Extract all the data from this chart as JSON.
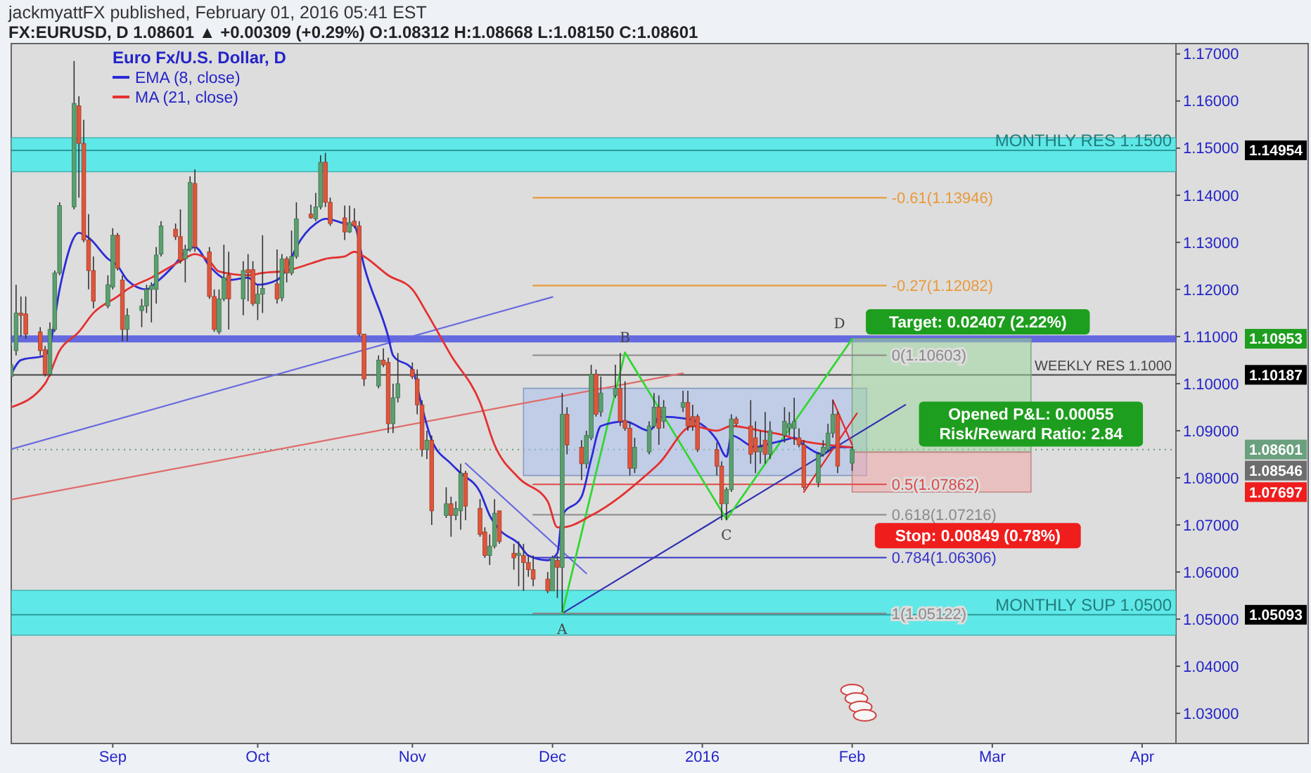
{
  "chart_data": {
    "type": "candlestick",
    "title": "jackmyattFX published, February 01, 2016 05:41 EST",
    "subtitle": "FX:EURUSD, D 1.08601 ▲ +0.00309 (+0.29%) O:1.08312 H:1.08668 L:1.08150 C:1.08601",
    "legend_title": "Euro Fx/U.S. Dollar, D",
    "legend": "top left",
    "xlim": [
      "2015-08-11",
      "2016-04-08"
    ],
    "xticks": [
      {
        "value": "2015-09-01",
        "label": "Sep"
      },
      {
        "value": "2015-10-01",
        "label": "Oct"
      },
      {
        "value": "2015-11-02",
        "label": "Nov"
      },
      {
        "value": "2015-12-01",
        "label": "Dec"
      },
      {
        "value": "2016-01-01",
        "label": "2016"
      },
      {
        "value": "2016-02-01",
        "label": "Feb"
      },
      {
        "value": "2016-03-01",
        "label": "Mar"
      },
      {
        "value": "2016-04-01",
        "label": "Apr"
      }
    ],
    "ylim": [
      1.0236,
      1.1722
    ],
    "yticks": [
      {
        "value": 1.03,
        "label": "1.03000"
      },
      {
        "value": 1.04,
        "label": "1.04000"
      },
      {
        "value": 1.05,
        "label": "1.05000"
      },
      {
        "value": 1.06,
        "label": "1.06000"
      },
      {
        "value": 1.07,
        "label": "1.07000"
      },
      {
        "value": 1.08,
        "label": "1.08000"
      },
      {
        "value": 1.09,
        "label": "1.09000"
      },
      {
        "value": 1.1,
        "label": "1.10000"
      },
      {
        "value": 1.11,
        "label": "1.11000"
      },
      {
        "value": 1.12,
        "label": "1.12000"
      },
      {
        "value": 1.13,
        "label": "1.13000"
      },
      {
        "value": 1.14,
        "label": "1.14000"
      },
      {
        "value": 1.15,
        "label": "1.15000"
      },
      {
        "value": 1.16,
        "label": "1.16000"
      },
      {
        "value": 1.17,
        "label": "1.17000"
      }
    ],
    "bands": [
      {
        "axis": "y",
        "from": 1.145,
        "to": 1.1522,
        "color": "#5fe8e8"
      },
      {
        "axis": "y",
        "from": 1.0466,
        "to": 1.0561,
        "color": "#5fe8e8"
      }
    ],
    "ref_lines": [
      {
        "axis": "y",
        "value": 1.14954,
        "label": "MONTHLY RES 1.1500",
        "color": "#2a9a9a"
      },
      {
        "axis": "y",
        "value": 1.05093,
        "label": "MONTHLY SUP 1.0500",
        "color": "#2a9a9a"
      },
      {
        "axis": "y",
        "value": 1.1095,
        "color": "#4f55e0"
      },
      {
        "axis": "y",
        "value": 1.10187,
        "label": "WEEKLY RES 1.1000",
        "color": "#444444"
      },
      {
        "axis": "y",
        "value": 1.08601,
        "line_style": "dotted",
        "color": "#5f9f78"
      }
    ],
    "series": [
      {
        "type": "line",
        "x": [
          "2015-11-25",
          "2016-02-04"
        ],
        "values": [
          null,
          null
        ],
        "lower": [
          1.0805,
          1.0805
        ],
        "upper": [
          1.099,
          1.099
        ],
        "color": "#a9c0ec"
      },
      {
        "type": "line",
        "x": [
          "2016-02-01",
          "2016-03-09"
        ],
        "values": [
          null,
          null
        ],
        "lower": [
          1.08546,
          1.08546
        ],
        "upper": [
          1.10953,
          1.10953
        ],
        "color": "#9fd59f"
      },
      {
        "type": "line",
        "x": [
          "2016-02-01",
          "2016-03-09"
        ],
        "values": [
          null,
          null
        ],
        "lower": [
          1.07697,
          1.07697
        ],
        "upper": [
          1.08546,
          1.08546
        ],
        "color": "#f2a8a8"
      },
      {
        "type": "line",
        "x": [
          "2015-08-11",
          "2015-12-01"
        ],
        "values": [
          1.0861,
          1.1184
        ],
        "color": "#6a6ae0"
      },
      {
        "type": "line",
        "x": [
          "2015-08-11",
          "2015-12-28"
        ],
        "values": [
          1.0754,
          1.1022
        ],
        "color": "#e06a6a"
      },
      {
        "type": "line",
        "x": [
          "2015-11-13",
          "2015-12-08"
        ],
        "values": [
          1.0831,
          1.0597
        ],
        "color": "#6a6ae0"
      },
      {
        "type": "line",
        "name": "-0.61(1.13946)",
        "x": [
          "2015-11-27",
          "2016-02-08"
        ],
        "values": [
          1.13946,
          1.13946
        ],
        "color": "#e89a3a"
      },
      {
        "type": "line",
        "name": "-0.27(1.12082)",
        "x": [
          "2015-11-27",
          "2016-02-08"
        ],
        "values": [
          1.12082,
          1.12082
        ],
        "color": "#e89a3a"
      },
      {
        "type": "line",
        "name": "0(1.10603)",
        "x": [
          "2015-11-27",
          "2016-02-08"
        ],
        "values": [
          1.10603,
          1.10603
        ],
        "color": "#8a8a8a"
      },
      {
        "type": "line",
        "name": "0.5(1.07862)",
        "x": [
          "2015-11-27",
          "2016-02-08"
        ],
        "values": [
          1.07862,
          1.07862
        ],
        "color": "#e04848"
      },
      {
        "type": "line",
        "name": "0.618(1.07216)",
        "x": [
          "2015-11-27",
          "2016-02-08"
        ],
        "values": [
          1.07216,
          1.07216
        ],
        "color": "#8a8a8a"
      },
      {
        "type": "line",
        "name": "0.784(1.06306)",
        "x": [
          "2015-11-27",
          "2016-02-08"
        ],
        "values": [
          1.06306,
          1.06306
        ],
        "color": "#3434c8"
      },
      {
        "type": "line",
        "name": "1(1.05122)",
        "x": [
          "2015-11-27",
          "2016-02-08"
        ],
        "values": [
          1.05122,
          1.05122
        ],
        "color": "#8a8a8a"
      },
      {
        "type": "line",
        "x": [
          "2015-12-03",
          "2016-02-12"
        ],
        "values": [
          1.05122,
          1.0955
        ],
        "color": "#3030b0"
      },
      {
        "type": "line",
        "x": [
          "2015-12-03",
          "2015-12-16",
          "2016-01-06",
          "2016-02-01"
        ],
        "values": [
          1.05122,
          1.1066,
          1.0712,
          1.1095
        ],
        "color": "#33d633"
      },
      {
        "type": "line",
        "x": [
          "2016-01-22",
          "2016-02-02"
        ],
        "values": [
          1.077,
          1.0937
        ],
        "color": "#e02828"
      },
      {
        "type": "line",
        "x": [
          "2016-01-28",
          "2016-02-01"
        ],
        "values": [
          1.0965,
          1.087
        ],
        "color": "#e02828"
      },
      {
        "x": [
          "2015-08-11",
          "2015-08-12",
          "2015-08-13",
          "2015-08-14",
          "2015-08-17",
          "2015-08-18",
          "2015-08-19",
          "2015-08-20",
          "2015-08-21",
          "2015-08-24",
          "2015-08-25",
          "2015-08-26",
          "2015-08-27",
          "2015-08-28",
          "2015-08-31",
          "2015-09-01",
          "2015-09-02",
          "2015-09-03",
          "2015-09-04",
          "2015-09-07",
          "2015-09-08",
          "2015-09-09",
          "2015-09-10",
          "2015-09-11",
          "2015-09-14",
          "2015-09-15",
          "2015-09-16",
          "2015-09-17",
          "2015-09-18",
          "2015-09-21",
          "2015-09-22",
          "2015-09-23",
          "2015-09-24",
          "2015-09-25",
          "2015-09-28",
          "2015-09-29",
          "2015-09-30",
          "2015-10-01",
          "2015-10-02",
          "2015-10-05",
          "2015-10-06",
          "2015-10-07",
          "2015-10-08",
          "2015-10-09",
          "2015-10-12",
          "2015-10-13",
          "2015-10-14",
          "2015-10-15",
          "2015-10-16",
          "2015-10-19",
          "2015-10-20",
          "2015-10-21",
          "2015-10-22",
          "2015-10-23",
          "2015-10-26",
          "2015-10-27",
          "2015-10-28",
          "2015-10-29",
          "2015-10-30",
          "2015-11-02",
          "2015-11-03",
          "2015-11-04",
          "2015-11-05",
          "2015-11-06",
          "2015-11-09",
          "2015-11-10",
          "2015-11-11",
          "2015-11-12",
          "2015-11-13",
          "2015-11-16",
          "2015-11-17",
          "2015-11-18",
          "2015-11-19",
          "2015-11-20",
          "2015-11-23",
          "2015-11-24",
          "2015-11-25",
          "2015-11-26",
          "2015-11-27",
          "2015-11-30",
          "2015-12-01",
          "2015-12-02",
          "2015-12-03",
          "2015-12-04",
          "2015-12-07",
          "2015-12-08",
          "2015-12-09",
          "2015-12-10",
          "2015-12-11",
          "2015-12-14",
          "2015-12-15",
          "2015-12-16",
          "2015-12-17",
          "2015-12-18",
          "2015-12-21",
          "2015-12-22",
          "2015-12-23",
          "2015-12-24",
          "2015-12-28",
          "2015-12-29",
          "2015-12-30",
          "2015-12-31",
          "2016-01-04",
          "2016-01-05",
          "2016-01-06",
          "2016-01-07",
          "2016-01-08",
          "2016-01-11",
          "2016-01-12",
          "2016-01-13",
          "2016-01-14",
          "2016-01-15",
          "2016-01-18",
          "2016-01-19",
          "2016-01-20",
          "2016-01-21",
          "2016-01-22",
          "2016-01-25",
          "2016-01-26",
          "2016-01-27",
          "2016-01-28",
          "2016-01-29",
          "2016-02-01"
        ],
        "colors": [
          "#5aa06f",
          "#5aa06f",
          "#e0553a",
          "#e0553a",
          "#e0553a",
          "#e0553a",
          "#5aa06f",
          "#5aa06f",
          "#5aa06f",
          "#5aa06f",
          "#e0553a",
          "#e0553a",
          "#e0553a",
          "#e0553a",
          "#5aa06f",
          "#5aa06f",
          "#e0553a",
          "#e0553a",
          "#5aa06f",
          "#5aa06f",
          "#5aa06f",
          "#5aa06f",
          "#5aa06f",
          "#5aa06f",
          "#e0553a",
          "#e0553a",
          "#5aa06f",
          "#5aa06f",
          "#e0553a",
          "#e0553a",
          "#e0553a",
          "#5aa06f",
          "#5aa06f",
          "#e0553a",
          "#5aa06f",
          "#e0553a",
          "#e0553a",
          "#5aa06f",
          "#5aa06f",
          "#e0553a",
          "#5aa06f",
          "#e0553a",
          "#5aa06f",
          "#5aa06f",
          "#e0553a",
          "#5aa06f",
          "#5aa06f",
          "#e0553a",
          "#e0553a",
          "#e0553a",
          "#5aa06f",
          "#e0553a",
          "#e0553a",
          "#e0553a",
          "#5aa06f",
          "#e0553a",
          "#e0553a",
          "#5aa06f",
          "#5aa06f",
          "#e0553a",
          "#e0553a",
          "#e0553a",
          "#5aa06f",
          "#e0553a",
          "#5aa06f",
          "#e0553a",
          "#5aa06f",
          "#5aa06f",
          "#e0553a",
          "#e0553a",
          "#e0553a",
          "#5aa06f",
          "#5aa06f",
          "#e0553a",
          "#e0553a",
          "#5aa06f",
          "#e0553a",
          "#e0553a",
          "#e0553a",
          "#e0553a",
          "#5aa06f",
          "#e0553a",
          "#5aa06f",
          "#e0553a",
          "#e0553a",
          "#5aa06f",
          "#5aa06f",
          "#e0553a",
          "#5aa06f",
          "#5aa06f",
          "#e0553a",
          "#e0553a",
          "#e0553a",
          "#5aa06f",
          "#5aa06f",
          "#5aa06f",
          "#e0553a",
          "#5aa06f",
          "#5aa06f",
          "#e0553a",
          "#e0553a",
          "#e0553a",
          "#e0553a",
          "#e0553a",
          "#5aa06f",
          "#5aa06f",
          "#e0553a",
          "#e0553a",
          "#e0553a",
          "#5aa06f",
          "#e0553a",
          "#5aa06f",
          "#5aa06f",
          "#5aa06f",
          "#5aa06f",
          "#e0553a",
          "#e0553a",
          "#5aa06f",
          "#5aa06f",
          "#5aa06f",
          "#5aa06f",
          "#e0553a",
          "#5aa06f"
        ],
        "ohlc": [
          [
            1.1015,
            1.108,
            1.096,
            1.104
          ],
          [
            1.107,
            1.121,
            1.106,
            1.115
          ],
          [
            1.115,
            1.1185,
            1.11,
            1.1145
          ],
          [
            1.1148,
            1.1185,
            1.1095,
            1.1105
          ],
          [
            1.111,
            1.112,
            1.106,
            1.107
          ],
          [
            1.1072,
            1.108,
            1.1015,
            1.102
          ],
          [
            1.102,
            1.113,
            1.1015,
            1.1115
          ],
          [
            1.1115,
            1.124,
            1.111,
            1.1235
          ],
          [
            1.1235,
            1.1385,
            1.123,
            1.1378
          ],
          [
            1.1375,
            1.1685,
            1.137,
            1.1595
          ],
          [
            1.159,
            1.161,
            1.1395,
            1.151
          ],
          [
            1.151,
            1.156,
            1.13,
            1.1305
          ],
          [
            1.1305,
            1.136,
            1.12,
            1.124
          ],
          [
            1.124,
            1.127,
            1.116,
            1.1175
          ],
          [
            1.1165,
            1.123,
            1.116,
            1.121
          ],
          [
            1.1205,
            1.133,
            1.12,
            1.1315
          ],
          [
            1.1315,
            1.132,
            1.124,
            1.1245
          ],
          [
            1.122,
            1.123,
            1.109,
            1.1115
          ],
          [
            1.1115,
            1.116,
            1.109,
            1.1145
          ],
          [
            1.1155,
            1.118,
            1.112,
            1.1165
          ],
          [
            1.1165,
            1.121,
            1.115,
            1.12
          ],
          [
            1.12,
            1.1215,
            1.113,
            1.1208
          ],
          [
            1.12,
            1.129,
            1.117,
            1.1273
          ],
          [
            1.1275,
            1.1345,
            1.127,
            1.1335
          ],
          [
            1.1328,
            1.134,
            1.1305,
            1.1312
          ],
          [
            1.1312,
            1.137,
            1.1255,
            1.1262
          ],
          [
            1.1265,
            1.1295,
            1.1215,
            1.1285
          ],
          [
            1.1285,
            1.144,
            1.128,
            1.1427
          ],
          [
            1.1425,
            1.1455,
            1.128,
            1.129
          ],
          [
            1.128,
            1.129,
            1.118,
            1.1185
          ],
          [
            1.1185,
            1.12,
            1.111,
            1.1115
          ],
          [
            1.111,
            1.12,
            1.1105,
            1.118
          ],
          [
            1.118,
            1.1295,
            1.1175,
            1.1225
          ],
          [
            1.123,
            1.128,
            1.1115,
            1.118
          ],
          [
            1.118,
            1.126,
            1.1145,
            1.124
          ],
          [
            1.1242,
            1.1275,
            1.1175,
            1.1235
          ],
          [
            1.1242,
            1.126,
            1.1165,
            1.117
          ],
          [
            1.117,
            1.121,
            1.1135,
            1.119
          ],
          [
            1.119,
            1.1315,
            1.115,
            1.1202
          ],
          [
            1.1212,
            1.1285,
            1.117,
            1.118
          ],
          [
            1.1182,
            1.1275,
            1.1175,
            1.1265
          ],
          [
            1.1265,
            1.127,
            1.1215,
            1.1235
          ],
          [
            1.1235,
            1.1325,
            1.123,
            1.127
          ],
          [
            1.127,
            1.1385,
            1.1265,
            1.135
          ],
          [
            1.136,
            1.138,
            1.135,
            1.1352
          ],
          [
            1.135,
            1.1405,
            1.1345,
            1.1375
          ],
          [
            1.1375,
            1.1485,
            1.137,
            1.147
          ],
          [
            1.147,
            1.149,
            1.1375,
            1.1385
          ],
          [
            1.1385,
            1.1395,
            1.1335,
            1.134
          ],
          [
            1.1352,
            1.1378,
            1.1305,
            1.1322
          ],
          [
            1.1322,
            1.1378,
            1.132,
            1.1342
          ],
          [
            1.1345,
            1.1372,
            1.133,
            1.1335
          ],
          [
            1.1335,
            1.1345,
            1.11,
            1.1105
          ],
          [
            1.1105,
            1.1105,
            1.0995,
            1.101
          ],
          [
            1.0995,
            1.106,
            1.099,
            1.105
          ],
          [
            1.105,
            1.1075,
            1.1035,
            1.104
          ],
          [
            1.1045,
            1.1055,
            1.0895,
            1.0915
          ],
          [
            1.0915,
            1.1,
            1.0895,
            1.097
          ],
          [
            1.097,
            1.1065,
            1.096,
            1.1
          ],
          [
            1.103,
            1.1045,
            1.101,
            1.1015
          ],
          [
            1.101,
            1.103,
            1.0935,
            1.0955
          ],
          [
            1.0955,
            1.0965,
            1.0845,
            1.086
          ],
          [
            1.086,
            1.09,
            1.084,
            1.088
          ],
          [
            1.088,
            1.089,
            1.07,
            1.073
          ],
          [
            1.072,
            1.078,
            1.0715,
            1.0745
          ],
          [
            1.0745,
            1.076,
            1.0675,
            1.072
          ],
          [
            1.072,
            1.075,
            1.071,
            1.0735
          ],
          [
            1.073,
            1.083,
            1.069,
            1.081
          ],
          [
            1.081,
            1.0815,
            1.071,
            1.074
          ],
          [
            1.0735,
            1.0755,
            1.0675,
            1.068
          ],
          [
            1.0685,
            1.0695,
            1.063,
            1.0635
          ],
          [
            1.0635,
            1.068,
            1.0615,
            1.0655
          ],
          [
            1.0655,
            1.0755,
            1.065,
            1.0725
          ],
          [
            1.073,
            1.073,
            1.066,
            1.0665
          ],
          [
            1.064,
            1.066,
            1.0605,
            1.063
          ],
          [
            1.0635,
            1.0665,
            1.057,
            1.064
          ],
          [
            1.0635,
            1.066,
            1.056,
            1.062
          ],
          [
            1.062,
            1.0635,
            1.059,
            1.0605
          ],
          [
            1.0605,
            1.0635,
            1.057,
            1.0585
          ],
          [
            1.0585,
            1.06,
            1.0555,
            1.056
          ],
          [
            1.056,
            1.0635,
            1.056,
            1.063
          ],
          [
            1.0625,
            1.0635,
            1.0545,
            1.061
          ],
          [
            1.061,
            1.098,
            1.0515,
            1.0935
          ],
          [
            1.0935,
            1.095,
            1.085,
            1.087
          ],
          [
            1.0865,
            1.088,
            1.0795,
            1.083
          ],
          [
            1.083,
            1.09,
            1.082,
            1.089
          ],
          [
            1.0885,
            1.104,
            1.088,
            1.102
          ],
          [
            1.102,
            1.103,
            1.093,
            1.0935
          ],
          [
            1.094,
            1.1015,
            1.093,
            1.098
          ],
          [
            1.0975,
            1.104,
            1.097,
            1.099
          ],
          [
            1.099,
            1.1065,
            1.091,
            1.092
          ],
          [
            1.0922,
            1.1005,
            1.09,
            1.0905
          ],
          [
            1.0905,
            1.092,
            1.0805,
            1.082
          ],
          [
            1.082,
            1.0885,
            1.081,
            1.0865
          ],
          [
            1.0855,
            1.092,
            1.085,
            1.091
          ],
          [
            1.091,
            1.098,
            1.0905,
            1.095
          ],
          [
            1.095,
            1.0975,
            1.087,
            1.0905
          ],
          [
            1.092,
            1.0965,
            1.0905,
            1.095
          ],
          [
            1.095,
            1.0985,
            1.094,
            1.096
          ],
          [
            1.096,
            1.0985,
            1.09,
            1.091
          ],
          [
            1.093,
            1.0955,
            1.09,
            1.091
          ],
          [
            1.093,
            1.0935,
            1.0855,
            1.086
          ],
          [
            1.086,
            1.0875,
            1.0805,
            1.0825
          ],
          [
            1.0825,
            1.0835,
            1.071,
            1.0745
          ],
          [
            1.0745,
            1.078,
            1.071,
            1.0775
          ],
          [
            1.0775,
            1.0935,
            1.077,
            1.0925
          ],
          [
            1.0925,
            1.093,
            1.091,
            1.0915
          ],
          [
            1.091,
            1.0965,
            1.083,
            1.085
          ],
          [
            1.0885,
            1.092,
            1.081,
            1.0855
          ],
          [
            1.0855,
            1.09,
            1.083,
            1.0865
          ],
          [
            1.088,
            1.094,
            1.083,
            1.085
          ],
          [
            1.085,
            1.092,
            1.084,
            1.09
          ],
          [
            1.089,
            1.095,
            1.0875,
            1.092
          ],
          [
            1.0905,
            1.094,
            1.089,
            1.0915
          ],
          [
            1.0905,
            1.097,
            1.087,
            1.092
          ],
          [
            1.0885,
            1.0905,
            1.0865,
            1.087
          ],
          [
            1.087,
            1.088,
            1.0775,
            1.078
          ],
          [
            1.079,
            1.0855,
            1.078,
            1.085
          ],
          [
            1.085,
            1.088,
            1.0845,
            1.0865
          ],
          [
            1.086,
            1.0915,
            1.0855,
            1.0895
          ],
          [
            1.0895,
            1.0965,
            1.0885,
            1.0935
          ],
          [
            1.0935,
            1.094,
            1.081,
            1.0825
          ],
          [
            1.08312,
            1.08668,
            1.0815,
            1.08601
          ]
        ]
      },
      {
        "type": "line",
        "name": "EMA (8, close)",
        "color": "#2b2bd8",
        "x": [
          "2015-08-11",
          "2015-08-13",
          "2015-08-18",
          "2015-08-19",
          "2015-08-21",
          "2015-08-25",
          "2015-08-27",
          "2015-08-31",
          "2015-09-02",
          "2015-09-04",
          "2015-09-08",
          "2015-09-10",
          "2015-09-14",
          "2015-09-16",
          "2015-09-18",
          "2015-09-21",
          "2015-09-23",
          "2015-09-25",
          "2015-09-29",
          "2015-10-01",
          "2015-10-05",
          "2015-10-07",
          "2015-10-09",
          "2015-10-13",
          "2015-10-15",
          "2015-10-19",
          "2015-10-21",
          "2015-10-23",
          "2015-10-28",
          "2015-10-29",
          "2015-11-02",
          "2015-11-04",
          "2015-11-06",
          "2015-11-10",
          "2015-11-12",
          "2015-11-16",
          "2015-11-18",
          "2015-11-20",
          "2015-11-24",
          "2015-11-26",
          "2015-11-30",
          "2015-12-02",
          "2015-12-03",
          "2015-12-07",
          "2015-12-09",
          "2015-12-11",
          "2015-12-16",
          "2015-12-21",
          "2015-12-22",
          "2015-12-23",
          "2015-12-29",
          "2016-01-04",
          "2016-01-06",
          "2016-01-07",
          "2016-01-12",
          "2016-01-14",
          "2016-01-18",
          "2016-01-20",
          "2016-01-22",
          "2016-01-26",
          "2016-01-28",
          "2016-02-01"
        ],
        "values": [
          1.102,
          1.105,
          1.106,
          1.108,
          1.12,
          1.132,
          1.131,
          1.1265,
          1.125,
          1.122,
          1.12,
          1.1215,
          1.1255,
          1.128,
          1.129,
          1.125,
          1.123,
          1.122,
          1.1225,
          1.121,
          1.122,
          1.1245,
          1.129,
          1.134,
          1.135,
          1.134,
          1.1335,
          1.125,
          1.11,
          1.106,
          1.103,
          1.095,
          1.088,
          1.083,
          1.081,
          1.077,
          1.072,
          1.069,
          1.066,
          1.0635,
          1.0625,
          1.064,
          1.072,
          1.076,
          1.084,
          1.091,
          1.092,
          1.09,
          1.091,
          1.093,
          1.0925,
          1.088,
          1.0845,
          1.089,
          1.0865,
          1.087,
          1.088,
          1.0885,
          1.087,
          1.085,
          1.0865,
          1.0865
        ]
      },
      {
        "type": "line",
        "name": "MA (21, close)",
        "color": "#e53030",
        "x": [
          "2015-08-11",
          "2015-08-18",
          "2015-08-21",
          "2015-08-25",
          "2015-08-28",
          "2015-09-02",
          "2015-09-04",
          "2015-09-09",
          "2015-09-15",
          "2015-09-18",
          "2015-09-21",
          "2015-09-23",
          "2015-09-29",
          "2015-10-02",
          "2015-10-07",
          "2015-10-12",
          "2015-10-15",
          "2015-10-19",
          "2015-10-21",
          "2015-10-23",
          "2015-10-28",
          "2015-11-02",
          "2015-11-05",
          "2015-11-10",
          "2015-11-16",
          "2015-11-19",
          "2015-11-24",
          "2015-11-30",
          "2015-12-02",
          "2015-12-03",
          "2015-12-09",
          "2015-12-15",
          "2015-12-18",
          "2015-12-23",
          "2015-12-30",
          "2016-01-04",
          "2016-01-07",
          "2016-01-13",
          "2016-01-18",
          "2016-01-21",
          "2016-01-27",
          "2016-02-01"
        ],
        "values": [
          1.095,
          1.1,
          1.107,
          1.111,
          1.115,
          1.1185,
          1.12,
          1.1225,
          1.126,
          1.1275,
          1.126,
          1.1238,
          1.123,
          1.1235,
          1.124,
          1.1255,
          1.1265,
          1.127,
          1.128,
          1.127,
          1.123,
          1.12,
          1.115,
          1.106,
          1.096,
          1.087,
          1.08,
          1.075,
          1.0695,
          1.0695,
          1.072,
          1.076,
          1.0785,
          1.083,
          1.091,
          1.09,
          1.091,
          1.09,
          1.089,
          1.088,
          1.087,
          1.0865
        ]
      }
    ],
    "annotations": [
      {
        "text": "A",
        "x": "2015-12-03",
        "y": 1.05122
      },
      {
        "text": "B",
        "x": "2015-12-16",
        "y": 1.1066
      },
      {
        "text": "C",
        "x": "2016-01-06",
        "y": 1.0712
      },
      {
        "text": "D",
        "x": "2016-02-01",
        "y": 1.1095
      },
      {
        "text": "Target: 0.02407 (2.22%)",
        "x": "2016-02-27",
        "y": 1.10953
      },
      {
        "text": "Opened P&L: 0.00055\nRisk/Reward Ratio: 2.84",
        "x": "2016-03-09",
        "y": 1.08546
      },
      {
        "text": "Stop: 0.00849 (0.78%)",
        "x": "2016-02-27",
        "y": 1.07697
      },
      "1.14954",
      "1.10953",
      "1.10187",
      "1.08601",
      "1.08546",
      "1.07697",
      "1.05093"
    ]
  }
}
